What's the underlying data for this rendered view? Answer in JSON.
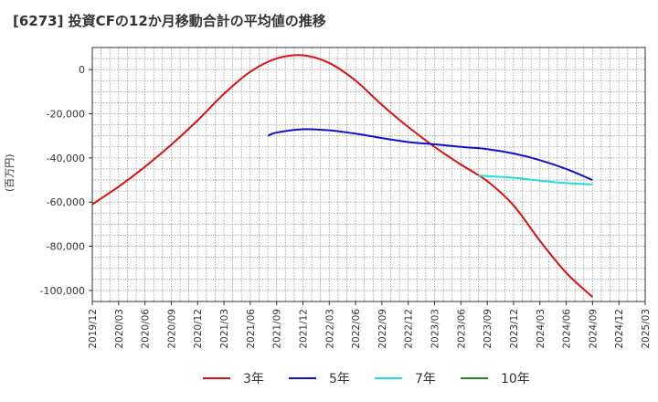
{
  "title": "[6273]  投資CFの12か月移動合計の平均値の推移",
  "chart_data": {
    "type": "line",
    "title": "[6273]  投資CFの12か月移動合計の平均値の推移",
    "ylabel": "(百万円)",
    "xlabel": "",
    "ylim": [
      -105000,
      10000
    ],
    "yticks": [
      0,
      -20000,
      -40000,
      -60000,
      -80000,
      -100000
    ],
    "ytick_labels": [
      "0",
      "-20,000",
      "-40,000",
      "-60,000",
      "-80,000",
      "-100,000"
    ],
    "xlim": [
      "2019/12",
      "2025/03"
    ],
    "xtick_labels": [
      "2019/12",
      "2020/03",
      "2020/06",
      "2020/09",
      "2020/12",
      "2021/03",
      "2021/06",
      "2021/09",
      "2021/12",
      "2022/03",
      "2022/06",
      "2022/09",
      "2022/12",
      "2023/03",
      "2023/06",
      "2023/09",
      "2023/12",
      "2024/03",
      "2024/06",
      "2024/09",
      "2024/12",
      "2025/03"
    ],
    "grid": true,
    "legend_position": "bottom",
    "series": [
      {
        "name": "3年",
        "color": "#dd1111",
        "points": [
          [
            "2019/12",
            -61000
          ],
          [
            "2020/03",
            -53000
          ],
          [
            "2020/06",
            -44000
          ],
          [
            "2020/09",
            -34000
          ],
          [
            "2020/12",
            -23000
          ],
          [
            "2021/03",
            -11000
          ],
          [
            "2021/06",
            -1000
          ],
          [
            "2021/09",
            5000
          ],
          [
            "2021/12",
            6500
          ],
          [
            "2022/03",
            3000
          ],
          [
            "2022/06",
            -5000
          ],
          [
            "2022/09",
            -16000
          ],
          [
            "2022/12",
            -26000
          ],
          [
            "2023/03",
            -35000
          ],
          [
            "2023/06",
            -43000
          ],
          [
            "2023/09",
            -50500
          ],
          [
            "2023/12",
            -61500
          ],
          [
            "2024/03",
            -77500
          ],
          [
            "2024/06",
            -92000
          ],
          [
            "2024/09",
            -103000
          ]
        ]
      },
      {
        "name": "5年",
        "color": "#1111cc",
        "points": [
          [
            "2021/08",
            -30000
          ],
          [
            "2021/09",
            -28500
          ],
          [
            "2021/12",
            -27000
          ],
          [
            "2022/03",
            -27500
          ],
          [
            "2022/06",
            -29000
          ],
          [
            "2022/09",
            -31000
          ],
          [
            "2022/12",
            -32800
          ],
          [
            "2023/03",
            -33800
          ],
          [
            "2023/06",
            -35000
          ],
          [
            "2023/09",
            -36000
          ],
          [
            "2023/12",
            -38000
          ],
          [
            "2024/03",
            -41000
          ],
          [
            "2024/06",
            -45000
          ],
          [
            "2024/09",
            -50000
          ]
        ]
      },
      {
        "name": "7年",
        "color": "#22dddd",
        "points": [
          [
            "2023/08",
            -48000
          ],
          [
            "2023/09",
            -48200
          ],
          [
            "2023/12",
            -49000
          ],
          [
            "2024/03",
            -50300
          ],
          [
            "2024/06",
            -51400
          ],
          [
            "2024/09",
            -52000
          ]
        ]
      },
      {
        "name": "10年",
        "color": "#228822",
        "points": []
      }
    ]
  }
}
